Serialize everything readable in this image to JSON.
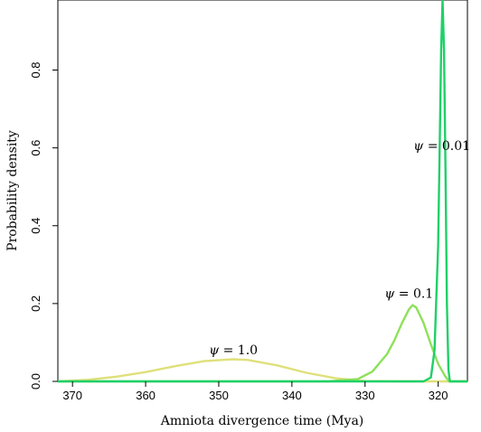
{
  "chart_data": {
    "type": "line",
    "xlabel": "Amniota divergence time (Mya)",
    "ylabel": "Probability density",
    "xlim": [
      372,
      316
    ],
    "ylim": [
      0,
      0.98
    ],
    "x_reversed": true,
    "xticks": [
      "370",
      "360",
      "350",
      "340",
      "330",
      "320"
    ],
    "xtick_values": [
      370,
      360,
      350,
      340,
      330,
      320
    ],
    "yticks": [
      "0.0",
      "0.2",
      "0.4",
      "0.6",
      "0.8"
    ],
    "ytick_values": [
      0,
      0.2,
      0.4,
      0.6,
      0.8
    ],
    "series": [
      {
        "name": "ψ = 1.0",
        "color": "#dfe07a",
        "x": [
          372,
          368,
          364,
          360,
          356,
          352,
          348,
          346,
          342,
          338,
          334,
          330,
          326,
          322,
          318.5,
          316
        ],
        "y": [
          0.0,
          0.004,
          0.012,
          0.024,
          0.039,
          0.052,
          0.057,
          0.055,
          0.041,
          0.022,
          0.008,
          0.001,
          0.0,
          0.0,
          0.0,
          0.0
        ]
      },
      {
        "name": "ψ = 0.1",
        "color": "#8ee05a",
        "x": [
          372,
          335,
          331,
          329,
          327,
          326,
          325,
          324,
          323.5,
          323,
          322,
          321,
          320,
          319,
          318.5,
          316
        ],
        "y": [
          0.0,
          0.0,
          0.006,
          0.025,
          0.07,
          0.105,
          0.148,
          0.185,
          0.196,
          0.19,
          0.15,
          0.095,
          0.045,
          0.012,
          0.0,
          0.0
        ]
      },
      {
        "name": "ψ = 0.01",
        "color": "#1fd068",
        "x": [
          372,
          322,
          321,
          320.5,
          320,
          319.8,
          319.6,
          319.4,
          319.2,
          319,
          318.8,
          318.6,
          318.4,
          316
        ],
        "y": [
          0.0,
          0.0,
          0.01,
          0.08,
          0.35,
          0.6,
          0.85,
          0.98,
          0.85,
          0.55,
          0.2,
          0.03,
          0.0,
          0.0
        ]
      }
    ],
    "annotations": [
      {
        "symbol": "ψ",
        "rest": " = 1.0",
        "x": 348,
        "y": 0.07
      },
      {
        "symbol": "ψ",
        "rest": " = 0.1",
        "x": 324,
        "y": 0.215
      },
      {
        "symbol": "ψ",
        "rest": " = 0.01",
        "x": 319.5,
        "y": 0.595
      }
    ]
  }
}
